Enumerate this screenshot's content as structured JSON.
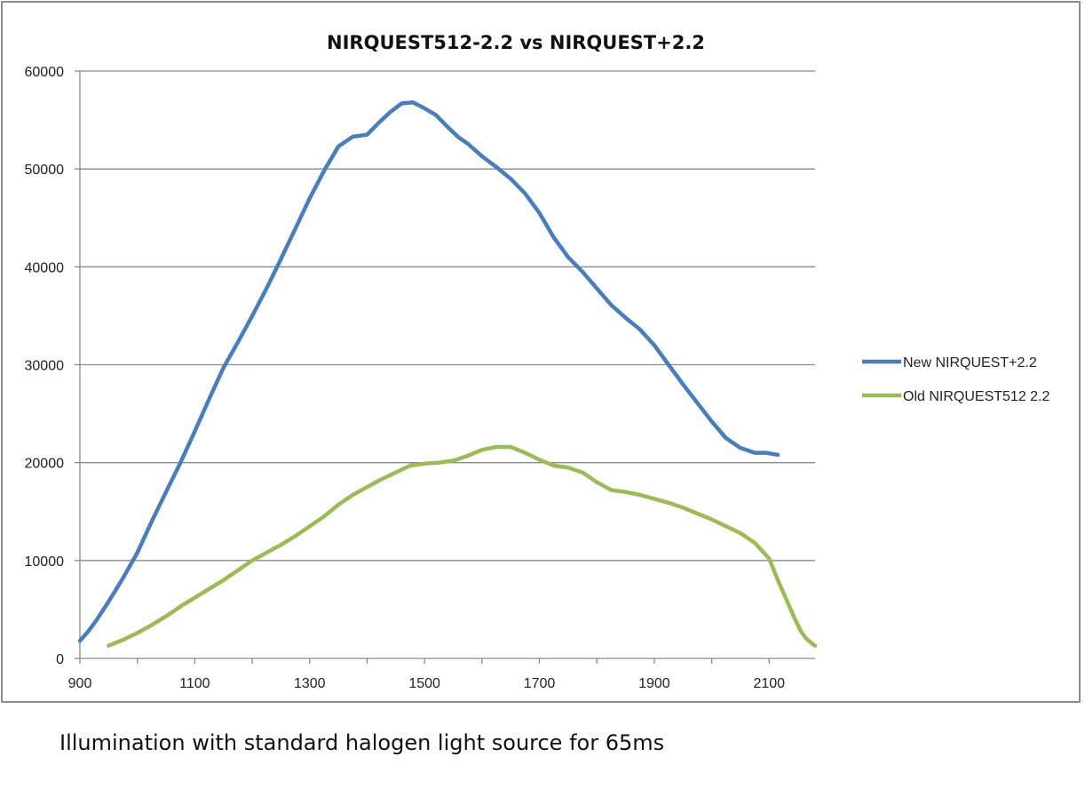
{
  "chart_data": {
    "type": "line",
    "title": "NIRQUEST512-2.2  vs  NIRQUEST+2.2",
    "xlabel": "",
    "ylabel": "",
    "xlim": [
      900,
      2180
    ],
    "ylim": [
      0,
      60000
    ],
    "x_ticks": [
      900,
      1100,
      1300,
      1500,
      1700,
      1900,
      2100
    ],
    "y_ticks": [
      0,
      10000,
      20000,
      30000,
      40000,
      50000,
      60000
    ],
    "grid": "horizontal",
    "legend_position": "right",
    "series": [
      {
        "name": "New NIRQUEST+2.2",
        "color": "#4a7ebb",
        "x": [
          900,
          915,
          930,
          950,
          975,
          1000,
          1025,
          1050,
          1075,
          1100,
          1125,
          1150,
          1175,
          1200,
          1225,
          1250,
          1275,
          1300,
          1325,
          1350,
          1375,
          1400,
          1420,
          1440,
          1460,
          1480,
          1500,
          1520,
          1540,
          1560,
          1575,
          1600,
          1625,
          1650,
          1675,
          1700,
          1725,
          1750,
          1775,
          1800,
          1825,
          1850,
          1875,
          1900,
          1925,
          1950,
          1975,
          2000,
          2025,
          2050,
          2075,
          2095,
          2105,
          2115
        ],
        "values": [
          1800,
          2800,
          4000,
          5800,
          8200,
          10800,
          14000,
          17000,
          20000,
          23200,
          26500,
          29700,
          32300,
          35000,
          37800,
          40800,
          43900,
          47000,
          49800,
          52300,
          53300,
          53500,
          54700,
          55800,
          56700,
          56800,
          56200,
          55500,
          54300,
          53200,
          52600,
          51300,
          50200,
          49000,
          47500,
          45500,
          43000,
          41000,
          39500,
          37800,
          36100,
          34800,
          33600,
          32000,
          30000,
          28000,
          26100,
          24200,
          22500,
          21500,
          21000,
          21000,
          20900,
          20800
        ]
      },
      {
        "name": "Old NIRQUEST512 2.2",
        "color": "#9bbb59",
        "x": [
          950,
          975,
          1000,
          1025,
          1050,
          1075,
          1100,
          1125,
          1150,
          1175,
          1200,
          1225,
          1250,
          1275,
          1300,
          1325,
          1350,
          1375,
          1400,
          1425,
          1450,
          1475,
          1500,
          1525,
          1550,
          1575,
          1600,
          1625,
          1650,
          1675,
          1700,
          1725,
          1750,
          1775,
          1800,
          1825,
          1850,
          1875,
          1900,
          1925,
          1950,
          1975,
          2000,
          2025,
          2050,
          2075,
          2100,
          2115,
          2130,
          2145,
          2155,
          2165,
          2175,
          2180
        ],
        "values": [
          1300,
          1900,
          2600,
          3400,
          4300,
          5300,
          6200,
          7100,
          8000,
          9000,
          10000,
          10800,
          11600,
          12500,
          13500,
          14500,
          15700,
          16700,
          17500,
          18300,
          19000,
          19700,
          19900,
          20000,
          20200,
          20700,
          21300,
          21600,
          21600,
          21000,
          20300,
          19700,
          19500,
          19000,
          18000,
          17200,
          17000,
          16700,
          16300,
          15900,
          15400,
          14800,
          14200,
          13500,
          12800,
          11800,
          10200,
          8000,
          6000,
          4000,
          2800,
          2000,
          1500,
          1300
        ]
      }
    ]
  },
  "caption": "Illumination with standard halogen light source for 65ms"
}
